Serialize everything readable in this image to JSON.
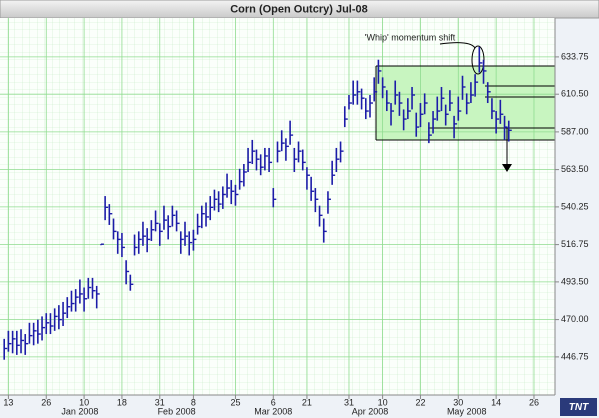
{
  "chart_data": {
    "type": "ohlc",
    "title": "Corn (Open Outcry) Jul-08",
    "annotation": "'Whip' momentum shift",
    "color": "#1c1ca8",
    "xlim": [
      -1,
      131
    ],
    "ylim": [
      423,
      658
    ],
    "xticks": [
      {
        "value": 1,
        "label": "13"
      },
      {
        "value": 10,
        "label": "26"
      },
      {
        "value": 19,
        "label": "10"
      },
      {
        "value": 28,
        "label": "18"
      },
      {
        "value": 37,
        "label": "31"
      },
      {
        "value": 45,
        "label": "8"
      },
      {
        "value": 55,
        "label": "25"
      },
      {
        "value": 64,
        "label": "6"
      },
      {
        "value": 72,
        "label": "21"
      },
      {
        "value": 82,
        "label": "31"
      },
      {
        "value": 90,
        "label": "10"
      },
      {
        "value": 99,
        "label": "22"
      },
      {
        "value": 108,
        "label": "30"
      },
      {
        "value": 117,
        "label": "14"
      },
      {
        "value": 126,
        "label": "26"
      }
    ],
    "month_ticks": [
      {
        "value": 18,
        "label": "Jan 2008"
      },
      {
        "value": 41,
        "label": "Feb 2008"
      },
      {
        "value": 64,
        "label": "Mar 2008"
      },
      {
        "value": 87,
        "label": "Apr 2008"
      },
      {
        "value": 110,
        "label": "May 2008"
      }
    ],
    "yticks": [
      446.75,
      {
        "value": 470,
        "label": "470.00"
      },
      {
        "value": 493.5,
        "label": "493.50"
      },
      516.75,
      540.25,
      {
        "value": 563.5,
        "label": "563.50"
      },
      {
        "value": 587,
        "label": "587.00"
      },
      {
        "value": 610.5,
        "label": "610.50"
      },
      633.75
    ],
    "grid": true,
    "high": [
      458,
      463,
      463,
      463,
      464,
      461,
      468,
      468,
      470,
      472,
      474,
      474,
      477,
      479,
      481,
      484,
      488,
      489,
      495,
      490,
      496,
      496,
      491,
      517,
      547,
      542,
      533,
      525,
      524,
      507,
      498,
      523,
      525,
      531,
      527,
      532,
      538,
      530,
      541,
      535,
      541,
      538,
      525,
      531,
      525,
      526,
      536,
      541,
      543,
      547,
      551,
      550,
      553,
      561,
      557,
      554,
      564,
      567,
      577,
      582,
      576,
      573,
      577,
      577,
      552,
      581,
      588,
      583,
      594,
      577,
      581,
      576,
      565,
      559,
      552,
      541,
      533,
      550,
      569,
      577,
      581,
      603,
      610,
      619,
      619,
      614,
      608,
      610,
      621,
      632,
      621,
      613,
      605,
      619,
      612,
      601,
      608,
      615,
      599,
      605,
      611,
      593,
      600,
      609,
      615,
      604,
      613,
      597,
      609,
      622,
      611,
      618,
      623,
      640,
      632,
      618,
      608,
      600,
      607,
      597,
      594
    ],
    "low": [
      445,
      450,
      449,
      448,
      449,
      448,
      455,
      454,
      455,
      457,
      461,
      461,
      463,
      464,
      466,
      471,
      475,
      475,
      480,
      475,
      483,
      483,
      477,
      517,
      532,
      529,
      520,
      511,
      509,
      492,
      488,
      510,
      511,
      516,
      512,
      519,
      525,
      516,
      526,
      520,
      528,
      525,
      511,
      516,
      510,
      513,
      523,
      527,
      528,
      532,
      538,
      537,
      539,
      546,
      542,
      541,
      551,
      553,
      562,
      567,
      563,
      560,
      563,
      562,
      540,
      568,
      575,
      569,
      579,
      562,
      568,
      563,
      551,
      544,
      537,
      528,
      518,
      536,
      554,
      562,
      568,
      590,
      601,
      604,
      604,
      601,
      595,
      596,
      606,
      617,
      608,
      600,
      591,
      604,
      597,
      588,
      595,
      601,
      584,
      590,
      598,
      580,
      586,
      594,
      600,
      591,
      600,
      583,
      594,
      607,
      598,
      605,
      609,
      624,
      617,
      605,
      595,
      586,
      592,
      582,
      581
    ],
    "close": [
      452,
      455,
      458,
      454,
      457,
      455,
      460,
      463,
      461,
      465,
      468,
      466,
      472,
      470,
      474,
      478,
      480,
      484,
      486,
      483,
      490,
      488,
      486,
      517,
      540,
      536,
      525,
      520,
      515,
      500,
      492,
      515,
      520,
      522,
      520,
      526,
      530,
      525,
      532,
      528,
      535,
      530,
      520,
      522,
      518,
      520,
      528,
      536,
      534,
      540,
      545,
      542,
      548,
      552,
      550,
      548,
      556,
      562,
      568,
      575,
      570,
      565,
      572,
      568,
      545,
      575,
      580,
      578,
      585,
      570,
      575,
      568,
      560,
      550,
      545,
      535,
      525,
      545,
      560,
      570,
      575,
      595,
      605,
      610,
      612,
      608,
      600,
      605,
      612,
      625,
      615,
      605,
      600,
      610,
      605,
      595,
      600,
      610,
      590,
      598,
      605,
      585,
      595,
      600,
      608,
      598,
      605,
      592,
      600,
      615,
      605,
      610,
      618,
      630,
      625,
      612,
      600,
      595,
      598,
      590,
      588
    ]
  }
}
